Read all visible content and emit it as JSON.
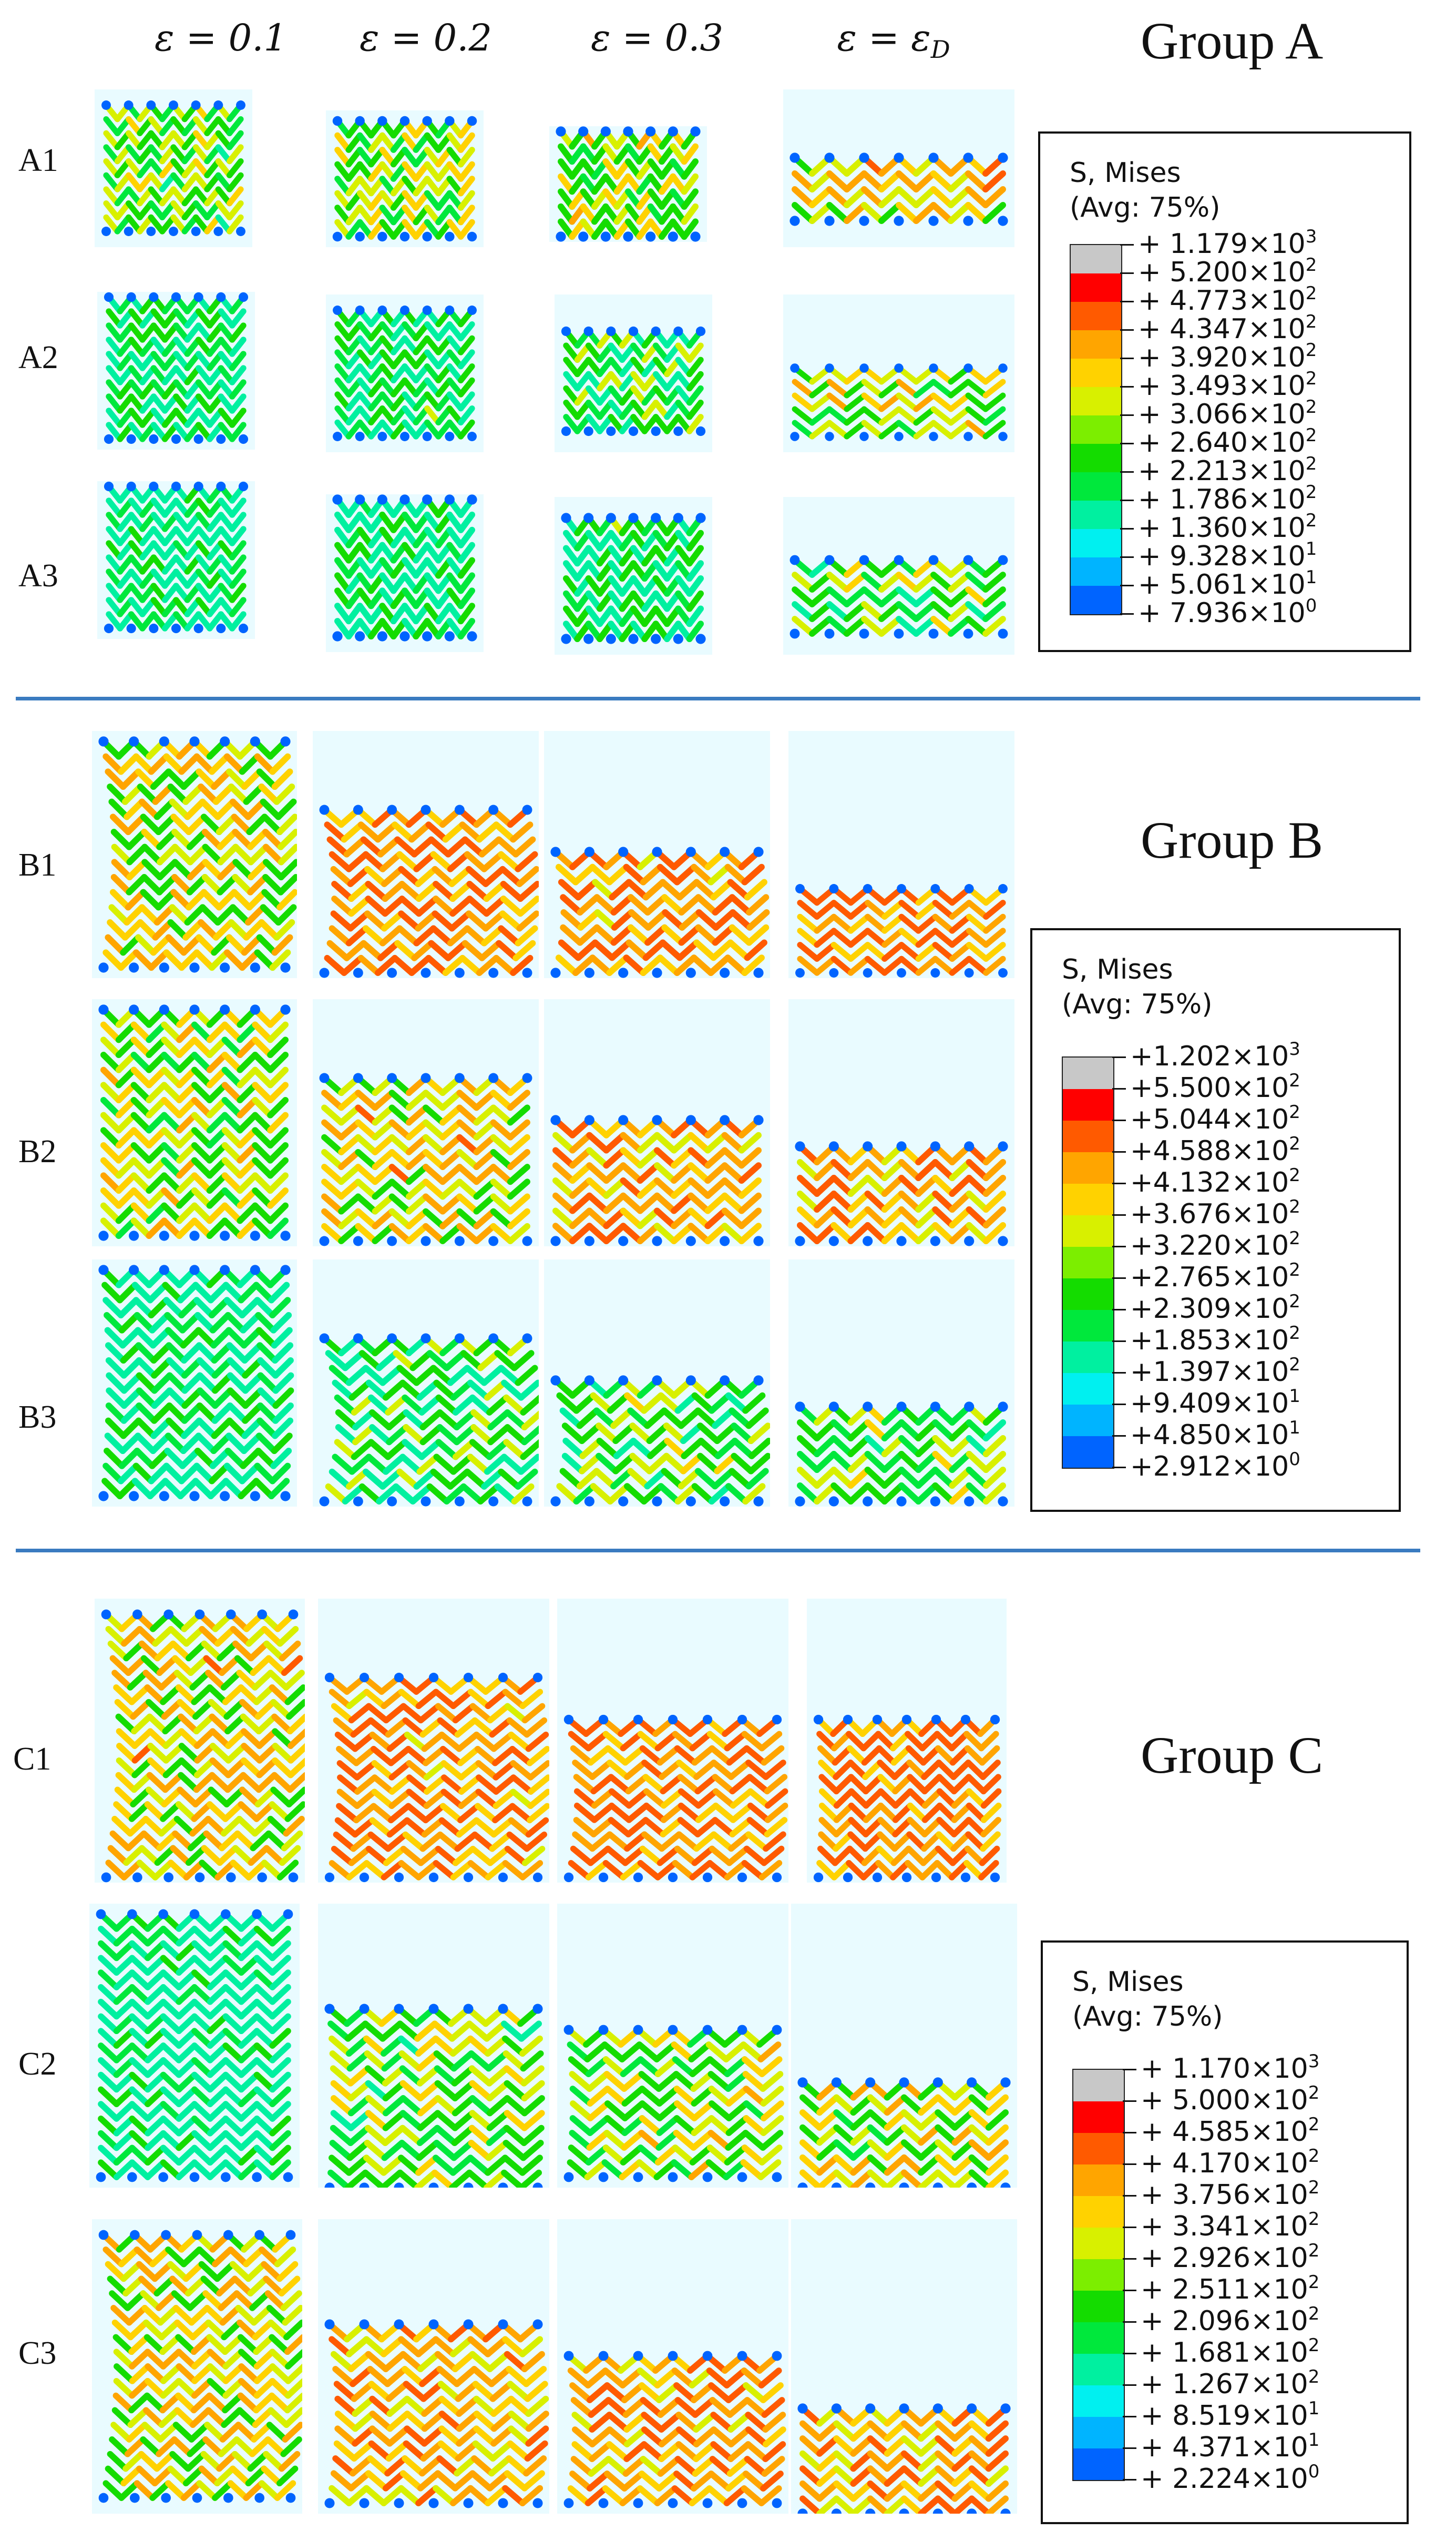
{
  "columns": [
    {
      "label": "ε = 0.1",
      "sub": ""
    },
    {
      "label": "ε = 0.2",
      "sub": ""
    },
    {
      "label": "ε = 0.3",
      "sub": ""
    },
    {
      "label": "ε = ε",
      "sub": "D"
    }
  ],
  "colors": {
    "panel_bg": "#e9fbff",
    "divider": "#3a7bc0",
    "scale": [
      "#c8c8c8",
      "#ff0000",
      "#ff5a00",
      "#ffa500",
      "#ffd200",
      "#d8f000",
      "#7cee00",
      "#14dc00",
      "#00e83c",
      "#00f0a0",
      "#00f0f0",
      "#00b4ff",
      "#0064ff",
      "#0000ff"
    ]
  },
  "groups": [
    {
      "title": "Group A",
      "rows": [
        "A1",
        "A2",
        "A3"
      ],
      "legend": {
        "title": "S, Mises",
        "subtitle": "(Avg: 75%)",
        "values": [
          {
            "m": "+ 1.179",
            "e": "3"
          },
          {
            "m": "+ 5.200",
            "e": "2"
          },
          {
            "m": "+ 4.773",
            "e": "2"
          },
          {
            "m": "+ 4.347",
            "e": "2"
          },
          {
            "m": "+ 3.920",
            "e": "2"
          },
          {
            "m": "+ 3.493",
            "e": "2"
          },
          {
            "m": "+ 3.066",
            "e": "2"
          },
          {
            "m": "+ 2.640",
            "e": "2"
          },
          {
            "m": "+ 2.213",
            "e": "2"
          },
          {
            "m": "+ 1.786",
            "e": "2"
          },
          {
            "m": "+ 1.360",
            "e": "2"
          },
          {
            "m": "+ 9.328",
            "e": "1"
          },
          {
            "m": "+ 5.061",
            "e": "1"
          },
          {
            "m": "+ 7.936",
            "e": "0"
          }
        ]
      }
    },
    {
      "title": "Group B",
      "rows": [
        "B1",
        "B2",
        "B3"
      ],
      "legend": {
        "title": "S, Mises",
        "subtitle": "(Avg: 75%)",
        "values": [
          {
            "m": "+1.202",
            "e": "3"
          },
          {
            "m": "+5.500",
            "e": "2"
          },
          {
            "m": "+5.044",
            "e": "2"
          },
          {
            "m": "+4.588",
            "e": "2"
          },
          {
            "m": "+4.132",
            "e": "2"
          },
          {
            "m": "+3.676",
            "e": "2"
          },
          {
            "m": "+3.220",
            "e": "2"
          },
          {
            "m": "+2.765",
            "e": "2"
          },
          {
            "m": "+2.309",
            "e": "2"
          },
          {
            "m": "+1.853",
            "e": "2"
          },
          {
            "m": "+1.397",
            "e": "2"
          },
          {
            "m": "+9.409",
            "e": "1"
          },
          {
            "m": "+4.850",
            "e": "1"
          },
          {
            "m": "+2.912",
            "e": "0"
          }
        ]
      }
    },
    {
      "title": "Group C",
      "rows": [
        "C1",
        "C2",
        "C3"
      ],
      "legend": {
        "title": "S, Mises",
        "subtitle": "(Avg: 75%)",
        "values": [
          {
            "m": "+ 1.170",
            "e": "3"
          },
          {
            "m": "+ 5.000",
            "e": "2"
          },
          {
            "m": "+ 4.585",
            "e": "2"
          },
          {
            "m": "+ 4.170",
            "e": "2"
          },
          {
            "m": "+ 3.756",
            "e": "2"
          },
          {
            "m": "+ 3.341",
            "e": "2"
          },
          {
            "m": "+ 2.926",
            "e": "2"
          },
          {
            "m": "+ 2.511",
            "e": "2"
          },
          {
            "m": "+ 2.096",
            "e": "2"
          },
          {
            "m": "+ 1.681",
            "e": "2"
          },
          {
            "m": "+ 1.267",
            "e": "2"
          },
          {
            "m": "+ 8.519",
            "e": "1"
          },
          {
            "m": "+ 4.371",
            "e": "1"
          },
          {
            "m": "+ 2.224",
            "e": "0"
          }
        ]
      }
    }
  ]
}
